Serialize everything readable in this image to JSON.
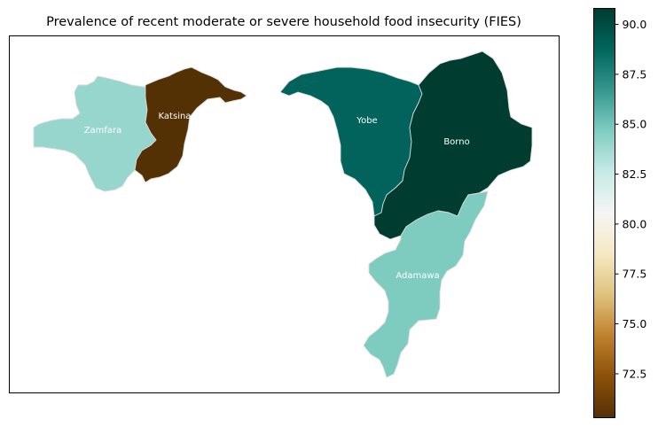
{
  "title": "Prevalence of recent moderate or severe household food insecurity (FIES)",
  "map": {
    "type": "choropleth",
    "color_scale": {
      "name": "BrBG",
      "vmin": 70.3,
      "vmax": 90.8,
      "stops": [
        "#543005",
        "#8c510a",
        "#bf812d",
        "#dfc27d",
        "#f6e8c3",
        "#f5f5f5",
        "#c7eae5",
        "#80cdc1",
        "#35978f",
        "#01665e",
        "#003c30"
      ]
    },
    "colorbar": {
      "ticks": [
        72.5,
        75.0,
        77.5,
        80.0,
        82.5,
        85.0,
        87.5,
        90.0
      ],
      "tick_labels": [
        "72.5",
        "75.0",
        "77.5",
        "80.0",
        "82.5",
        "85.0",
        "87.5",
        "90.0"
      ]
    },
    "regions": [
      {
        "name": "Zamfara",
        "value": 84.0
      },
      {
        "name": "Katsina",
        "value": 70.3
      },
      {
        "name": "Yobe",
        "value": 88.9
      },
      {
        "name": "Borno",
        "value": 90.8
      },
      {
        "name": "Adamawa",
        "value": 84.7
      }
    ]
  }
}
